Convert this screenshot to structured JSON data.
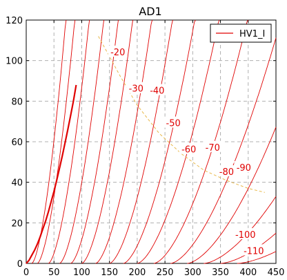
{
  "chart_data": {
    "type": "line",
    "title": "AD1",
    "xlabel": "",
    "ylabel": "",
    "xlim": [
      0,
      450
    ],
    "ylim": [
      0,
      120
    ],
    "x_ticks": [
      0,
      50,
      100,
      150,
      200,
      250,
      300,
      350,
      400,
      450
    ],
    "y_ticks": [
      0,
      20,
      40,
      60,
      80,
      100,
      120
    ],
    "grid": true,
    "legend": {
      "position": "top-right",
      "entries": [
        "HV1_I"
      ]
    },
    "colors": {
      "curves": "#e00000",
      "load_line": "#e8b84a",
      "grid": "#b0b0b0"
    },
    "zero_curve": {
      "x": [
        0,
        5,
        10,
        15,
        20,
        25,
        30,
        35,
        40,
        45,
        50,
        55,
        60,
        65,
        70,
        75,
        80,
        85,
        90
      ],
      "y": [
        0,
        1.5,
        4,
        6.5,
        9.5,
        13,
        17,
        21,
        25.5,
        30.5,
        35.5,
        41,
        47,
        53,
        59.5,
        66,
        73,
        80,
        88
      ]
    },
    "family_x_starts": [
      10,
      20,
      40,
      60,
      80,
      100,
      125,
      150,
      175,
      200,
      230,
      260,
      290,
      320,
      350,
      380
    ],
    "family_slopes": [
      2.0,
      2.2,
      2.4,
      2.6,
      2.8,
      3.0,
      3.3,
      3.7,
      4.2,
      4.8,
      5.5,
      6.5,
      7.5,
      9.5,
      12,
      15
    ],
    "series": [
      {
        "name": "HV1_I",
        "values": []
      }
    ],
    "curve_labels": [
      {
        "text": "-20",
        "x": 165,
        "y": 104
      },
      {
        "text": "-30",
        "x": 198,
        "y": 86
      },
      {
        "text": "-40",
        "x": 236,
        "y": 85
      },
      {
        "text": "-50",
        "x": 265,
        "y": 69
      },
      {
        "text": "-60",
        "x": 293,
        "y": 56
      },
      {
        "text": "-70",
        "x": 336,
        "y": 57
      },
      {
        "text": "-80",
        "x": 361,
        "y": 45
      },
      {
        "text": "-90",
        "x": 392,
        "y": 47
      },
      {
        "text": "-100",
        "x": 395,
        "y": 14
      },
      {
        "text": "-110",
        "x": 410,
        "y": 6
      }
    ],
    "load_line": {
      "x": [
        130,
        170,
        200,
        240,
        280,
        320,
        360,
        400,
        430
      ],
      "y": [
        112,
        92,
        78,
        64,
        54,
        46,
        41,
        37,
        35
      ]
    }
  }
}
